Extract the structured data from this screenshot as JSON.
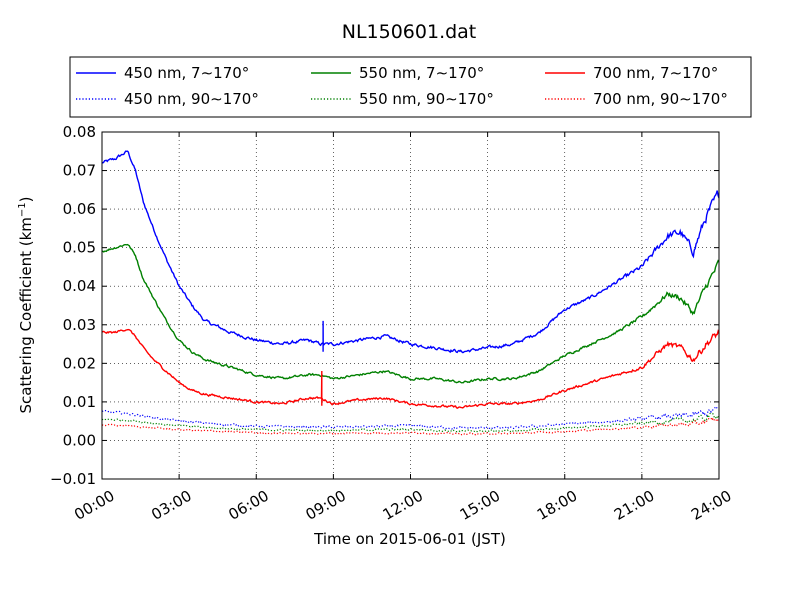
{
  "chart_data": {
    "type": "line",
    "title": "NL150601.dat",
    "xlabel": "Time on 2015-06-01 (JST)",
    "ylabel": "Scattering Coefficient (km",
    "ylabel_exp": "−1",
    "ylabel_close": ")",
    "xlim": [
      0,
      24
    ],
    "ylim": [
      -0.01,
      0.08
    ],
    "x_tick_values": [
      0,
      3,
      6,
      9,
      12,
      15,
      18,
      21,
      24
    ],
    "x_tick_labels": [
      "00:00",
      "03:00",
      "06:00",
      "09:00",
      "12:00",
      "15:00",
      "18:00",
      "21:00",
      "24:00"
    ],
    "y_tick_values": [
      -0.01,
      0,
      0.01,
      0.02,
      0.03,
      0.04,
      0.05,
      0.06,
      0.07,
      0.08
    ],
    "y_tick_labels": [
      "−0.01",
      "0.00",
      "0.01",
      "0.02",
      "0.03",
      "0.04",
      "0.05",
      "0.06",
      "0.07",
      "0.08"
    ],
    "grid": true,
    "legend_position": "top",
    "series": [
      {
        "name": "450 nm, 7∼170°",
        "color": "#0000ff",
        "style": "solid",
        "noise": 0.0008,
        "x": [
          0,
          0.5,
          1.0,
          1.3,
          1.6,
          2.0,
          2.5,
          3.0,
          3.5,
          4.0,
          5.0,
          6.0,
          7.0,
          8.0,
          8.5,
          9.0,
          10.0,
          11.0,
          12.0,
          13.0,
          14.0,
          15.0,
          16.0,
          17.0,
          18.0,
          19.0,
          20.0,
          21.0,
          22.0,
          22.5,
          23.0,
          23.5,
          24.0
        ],
        "y": [
          0.072,
          0.073,
          0.075,
          0.07,
          0.062,
          0.055,
          0.047,
          0.04,
          0.035,
          0.031,
          0.028,
          0.026,
          0.025,
          0.026,
          0.025,
          0.025,
          0.026,
          0.027,
          0.025,
          0.024,
          0.023,
          0.024,
          0.025,
          0.028,
          0.034,
          0.037,
          0.041,
          0.045,
          0.053,
          0.054,
          0.049,
          0.058,
          0.064
        ]
      },
      {
        "name": "550 nm, 7∼170°",
        "color": "#008000",
        "style": "solid",
        "noise": 0.0006,
        "x": [
          0,
          0.5,
          1.0,
          1.3,
          1.6,
          2.0,
          2.5,
          3.0,
          3.5,
          4.0,
          5.0,
          6.0,
          7.0,
          8.0,
          8.5,
          9.0,
          10.0,
          11.0,
          12.0,
          13.0,
          14.0,
          15.0,
          16.0,
          17.0,
          18.0,
          19.0,
          20.0,
          21.0,
          22.0,
          22.5,
          23.0,
          23.5,
          24.0
        ],
        "y": [
          0.049,
          0.05,
          0.051,
          0.048,
          0.042,
          0.037,
          0.031,
          0.026,
          0.023,
          0.021,
          0.019,
          0.017,
          0.016,
          0.017,
          0.017,
          0.016,
          0.017,
          0.018,
          0.016,
          0.016,
          0.015,
          0.016,
          0.016,
          0.018,
          0.022,
          0.025,
          0.028,
          0.032,
          0.038,
          0.037,
          0.033,
          0.04,
          0.046
        ]
      },
      {
        "name": "700 nm, 7∼170°",
        "color": "#ff0000",
        "style": "solid",
        "noise": 0.0006,
        "x": [
          0,
          0.5,
          1.0,
          1.3,
          1.6,
          2.0,
          2.5,
          3.0,
          3.5,
          4.0,
          5.0,
          6.0,
          7.0,
          8.0,
          8.5,
          9.0,
          10.0,
          11.0,
          12.0,
          13.0,
          14.0,
          15.0,
          16.0,
          17.0,
          18.0,
          19.0,
          20.0,
          21.0,
          22.0,
          22.5,
          23.0,
          23.5,
          24.0
        ],
        "y": [
          0.028,
          0.028,
          0.029,
          0.027,
          0.024,
          0.021,
          0.018,
          0.015,
          0.013,
          0.012,
          0.011,
          0.01,
          0.0095,
          0.011,
          0.011,
          0.0095,
          0.0105,
          0.011,
          0.0095,
          0.009,
          0.0085,
          0.0095,
          0.0095,
          0.0105,
          0.013,
          0.015,
          0.017,
          0.019,
          0.025,
          0.024,
          0.021,
          0.025,
          0.028
        ]
      },
      {
        "name": "450 nm, 90∼170°",
        "color": "#0000ff",
        "style": "dotted",
        "noise": 0.0006,
        "x": [
          0,
          1,
          2,
          3,
          4,
          6,
          8,
          10,
          12,
          14,
          16,
          18,
          20,
          22,
          23,
          24
        ],
        "y": [
          0.0075,
          0.007,
          0.006,
          0.005,
          0.0045,
          0.0037,
          0.0035,
          0.0035,
          0.0038,
          0.0032,
          0.0033,
          0.0042,
          0.005,
          0.0062,
          0.0065,
          0.008
        ]
      },
      {
        "name": "550 nm, 90∼170°",
        "color": "#008000",
        "style": "dotted",
        "noise": 0.0005,
        "x": [
          0,
          1,
          2,
          3,
          4,
          6,
          8,
          10,
          12,
          14,
          16,
          18,
          20,
          22,
          23,
          24
        ],
        "y": [
          0.0055,
          0.0053,
          0.0045,
          0.0038,
          0.0034,
          0.0028,
          0.0026,
          0.0027,
          0.0029,
          0.0024,
          0.0025,
          0.0032,
          0.004,
          0.005,
          0.0052,
          0.0068
        ]
      },
      {
        "name": "700 nm, 90∼170°",
        "color": "#ff0000",
        "style": "dotted",
        "noise": 0.0004,
        "x": [
          0,
          1,
          2,
          3,
          4,
          6,
          8,
          10,
          12,
          14,
          16,
          18,
          20,
          22,
          23,
          24
        ],
        "y": [
          0.004,
          0.0038,
          0.0033,
          0.0028,
          0.0025,
          0.002,
          0.0018,
          0.0019,
          0.002,
          0.0017,
          0.0018,
          0.0023,
          0.003,
          0.004,
          0.0042,
          0.0055
        ]
      }
    ],
    "spikes": [
      {
        "series": 0,
        "x": 8.6,
        "y_min": 0.023,
        "y_max": 0.031
      },
      {
        "series": 2,
        "x": 8.55,
        "y_min": 0.009,
        "y_max": 0.018
      }
    ]
  }
}
